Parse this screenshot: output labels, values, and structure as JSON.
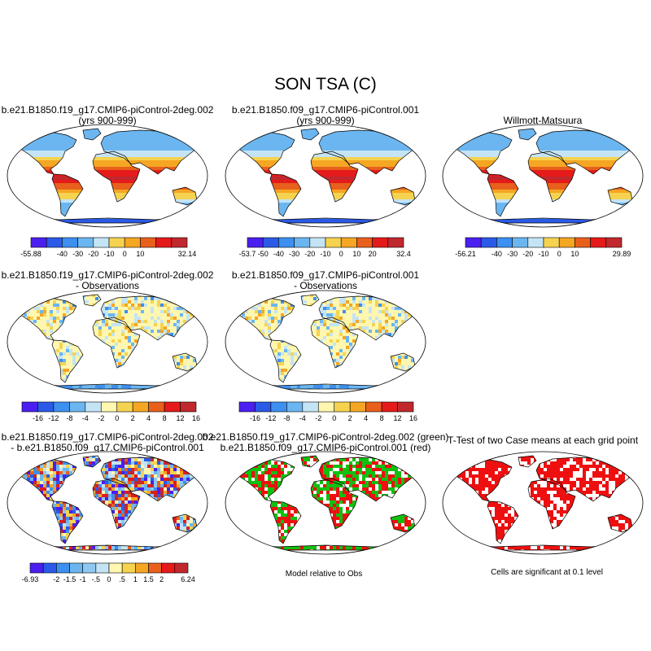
{
  "title": "SON TSA (C)",
  "chart_data": [
    {
      "type": "heatmap",
      "panel": "model-1",
      "title_lines": [
        "b.e21.B1850.f19_g17.CMIP6-piControl-2deg.002",
        "(yrs 900-999)"
      ],
      "colorbar": {
        "colors": [
          "#4b1ff0",
          "#2b5ae8",
          "#3d8ff0",
          "#6bb6f0",
          "#c4e4f5",
          "#f5d350",
          "#f5a623",
          "#e8601c",
          "#e51a1a",
          "#c0282e"
        ],
        "labels": [
          "-55.88",
          "",
          "-40",
          "-30",
          "-20",
          "-10",
          "0",
          "10",
          "",
          "",
          "32.14"
        ],
        "min": -55.88,
        "max": 32.14
      }
    },
    {
      "type": "heatmap",
      "panel": "model-2",
      "title_lines": [
        "b.e21.B1850.f09_g17.CMIP6-piControl.001",
        "(yrs 900-999)"
      ],
      "colorbar": {
        "colors": [
          "#4b1ff0",
          "#2b5ae8",
          "#3d8ff0",
          "#6bb6f0",
          "#c4e4f5",
          "#f5d350",
          "#f5a623",
          "#e8601c",
          "#e51a1a",
          "#c0282e"
        ],
        "labels": [
          "-53.7",
          "-50",
          "-40",
          "-30",
          "-20",
          "-10",
          "0",
          "10",
          "20",
          "",
          "32.4"
        ],
        "min": -53.7,
        "max": 32.4
      }
    },
    {
      "type": "heatmap",
      "panel": "observations",
      "title_lines": [
        "Willmott-Matsuura"
      ],
      "colorbar": {
        "colors": [
          "#4b1ff0",
          "#2b5ae8",
          "#3d8ff0",
          "#6bb6f0",
          "#c4e4f5",
          "#f5d350",
          "#f5a623",
          "#e8601c",
          "#e51a1a",
          "#c0282e"
        ],
        "labels": [
          "-56.21",
          "",
          "-40",
          "-30",
          "-20",
          "-10",
          "0",
          "10",
          "",
          "",
          "29.89"
        ],
        "min": -56.21,
        "max": 29.89
      }
    },
    {
      "type": "heatmap",
      "panel": "model-1-minus-obs",
      "title_lines": [
        "b.e21.B1850.f19_g17.CMIP6-piControl-2deg.002",
        "- Observations"
      ],
      "colorbar": {
        "colors": [
          "#4b1ff0",
          "#2b5ae8",
          "#3d8ff0",
          "#6bb6f0",
          "#c4e4f5",
          "#fff7b0",
          "#f5d350",
          "#f5a623",
          "#e8601c",
          "#e51a1a",
          "#c0282e"
        ],
        "labels": [
          "",
          "-16",
          "-12",
          "-8",
          "-4",
          "-2",
          "0",
          "2",
          "4",
          "8",
          "12",
          "16"
        ]
      }
    },
    {
      "type": "heatmap",
      "panel": "model-2-minus-obs",
      "title_lines": [
        "b.e21.B1850.f09_g17.CMIP6-piControl.001",
        "- Observations"
      ],
      "colorbar": {
        "colors": [
          "#4b1ff0",
          "#2b5ae8",
          "#3d8ff0",
          "#6bb6f0",
          "#c4e4f5",
          "#fff7b0",
          "#f5d350",
          "#f5a623",
          "#e8601c",
          "#e51a1a",
          "#c0282e"
        ],
        "labels": [
          "",
          "-16",
          "-12",
          "-8",
          "-4",
          "-2",
          "0",
          "2",
          "4",
          "8",
          "12",
          "16"
        ]
      }
    },
    {
      "type": "heatmap",
      "panel": "model-1-minus-model-2",
      "title_lines": [
        "b.e21.B1850.f19_g17.CMIP6-piControl-2deg.002",
        "- b.e21.B1850.f09_g17.CMIP6-piControl.001"
      ],
      "colorbar": {
        "colors": [
          "#4b1ff0",
          "#2b5ae8",
          "#3d8ff0",
          "#6bb6f0",
          "#8ec8f0",
          "#c4e4f5",
          "#fff7b0",
          "#f5d350",
          "#f5a623",
          "#e8601c",
          "#e51a1a",
          "#c0282e"
        ],
        "labels": [
          "-6.93",
          "",
          "-2",
          "-1.5",
          "-1",
          "-.5",
          "0",
          ".5",
          "1",
          "1.5",
          "2",
          "",
          "6.24"
        ]
      }
    },
    {
      "type": "heatmap",
      "panel": "model-relative-to-obs",
      "title_lines": [
        "b.e21.B1850.f19_g17.CMIP6-piControl-2deg.002 (green)",
        "b.e21.B1850.f09_g17.CMIP6-piControl.001 (red)"
      ],
      "caption": "Model relative to Obs"
    },
    {
      "type": "heatmap",
      "panel": "t-test",
      "title_lines": [
        "T-Test of two Case means at each grid point"
      ],
      "caption": "Cells are significant at 0.1 level"
    }
  ]
}
